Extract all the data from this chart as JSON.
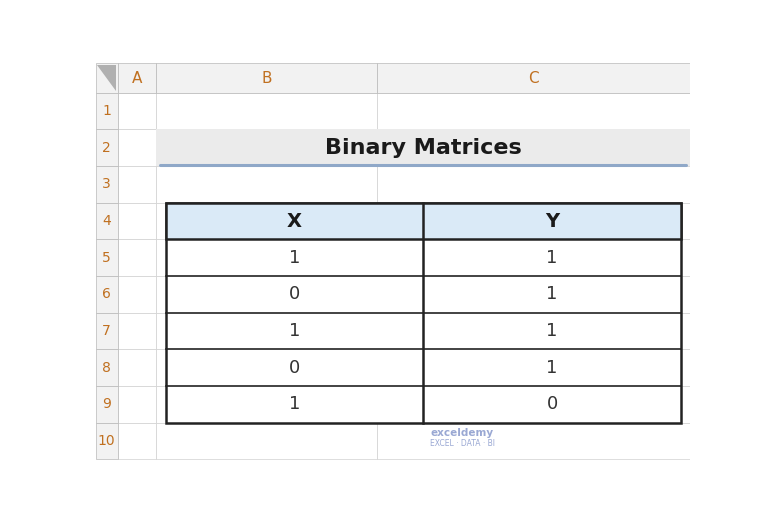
{
  "title": "Binary Matrices",
  "title_fontsize": 16,
  "title_fontweight": "bold",
  "title_color": "#1a1a1a",
  "title_bg_color": "#ebebeb",
  "title_underline_color": "#8fa8c8",
  "headers": [
    "X",
    "Y"
  ],
  "header_bg_color": "#daeaf7",
  "header_fontsize": 14,
  "header_fontweight": "bold",
  "header_text_color": "#1a1a1a",
  "data": [
    [
      1,
      1
    ],
    [
      0,
      1
    ],
    [
      1,
      1
    ],
    [
      0,
      1
    ],
    [
      1,
      0
    ]
  ],
  "data_fontsize": 13,
  "data_text_color": "#333333",
  "cell_bg_color": "#ffffff",
  "border_color": "#222222",
  "col_header_labels": [
    "A",
    "B",
    "C"
  ],
  "row_header_labels": [
    "1",
    "2",
    "3",
    "4",
    "5",
    "6",
    "7",
    "8",
    "9",
    "10"
  ],
  "spreadsheet_bg": "#ffffff",
  "col_header_bg": "#f2f2f2",
  "row_header_bg": "#f2f2f2",
  "col_header_text_color": "#c07020",
  "row_header_text_color": "#c07020",
  "grid_line_color": "#d0d0d0",
  "header_border_color": "#b8b8b8",
  "watermark_text": "exceldemy",
  "watermark_sub": "EXCEL · DATA · BI",
  "watermark_color": "#8899cc"
}
